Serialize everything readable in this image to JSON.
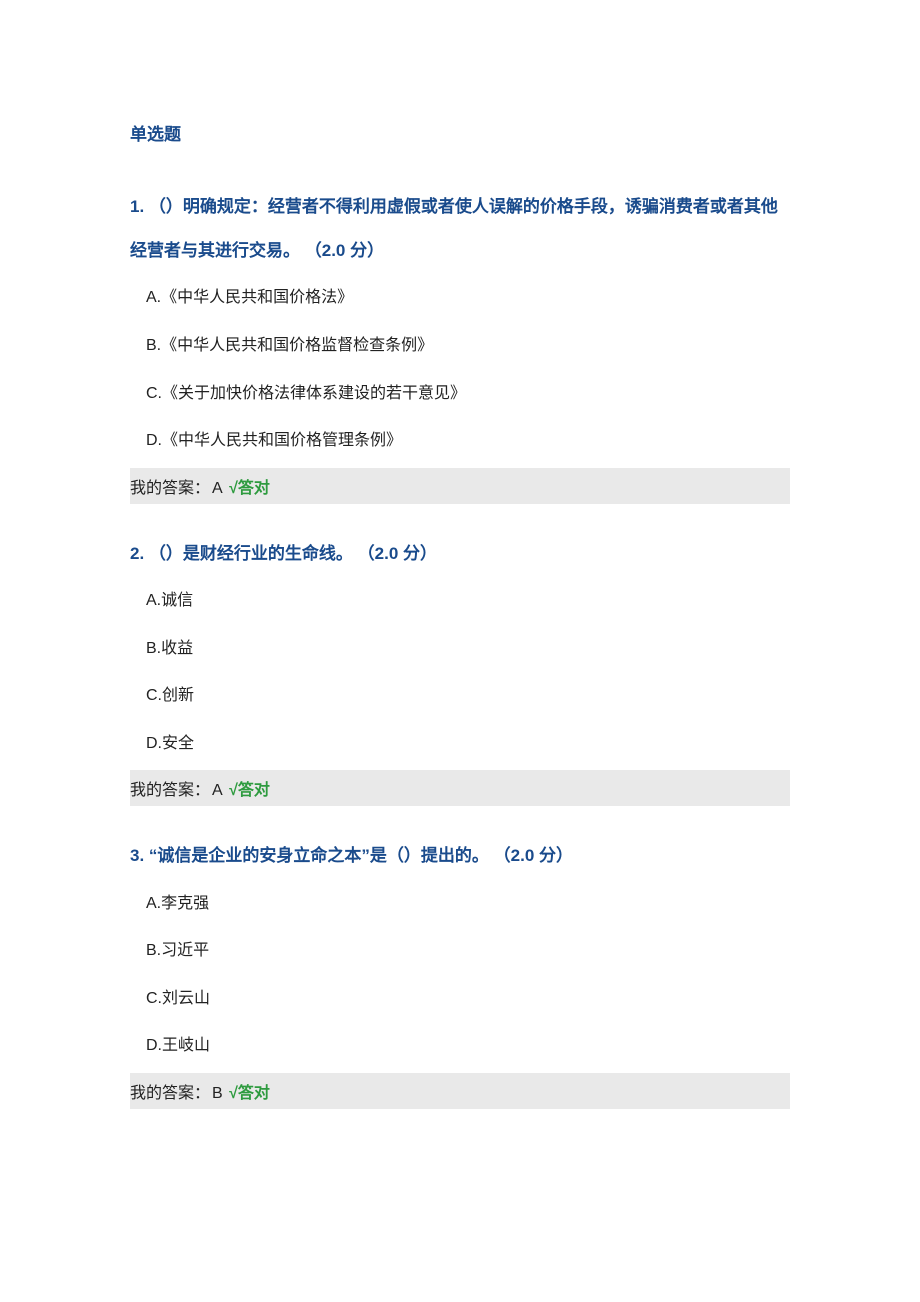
{
  "section_title": "单选题",
  "questions": [
    {
      "number": "1.",
      "text": "（）明确规定：经营者不得利用虚假或者使人误解的价格手段，诱骗消费者或者其他经营者与其进行交易。",
      "points": "（2.0 分）",
      "options": [
        "A.《中华人民共和国价格法》",
        "B.《中华人民共和国价格监督检查条例》",
        "C.《关于加快价格法律体系建设的若干意见》",
        "D.《中华人民共和国价格管理条例》"
      ],
      "answer_label": "我的答案：",
      "answer_value": "A",
      "check_mark": "√",
      "result": "答对"
    },
    {
      "number": "2.",
      "text": "（）是财经行业的生命线。",
      "points": "（2.0 分）",
      "options": [
        "A.诚信",
        "B.收益",
        "C.创新",
        "D.安全"
      ],
      "answer_label": "我的答案：",
      "answer_value": "A",
      "check_mark": "√",
      "result": "答对"
    },
    {
      "number": "3.",
      "text": "“诚信是企业的安身立命之本”是（）提出的。",
      "points": "（2.0 分）",
      "options": [
        "A.李克强",
        "B.习近平",
        "C.刘云山",
        "D.王岐山"
      ],
      "answer_label": "我的答案：",
      "answer_value": "B",
      "check_mark": "√",
      "result": "答对"
    }
  ]
}
